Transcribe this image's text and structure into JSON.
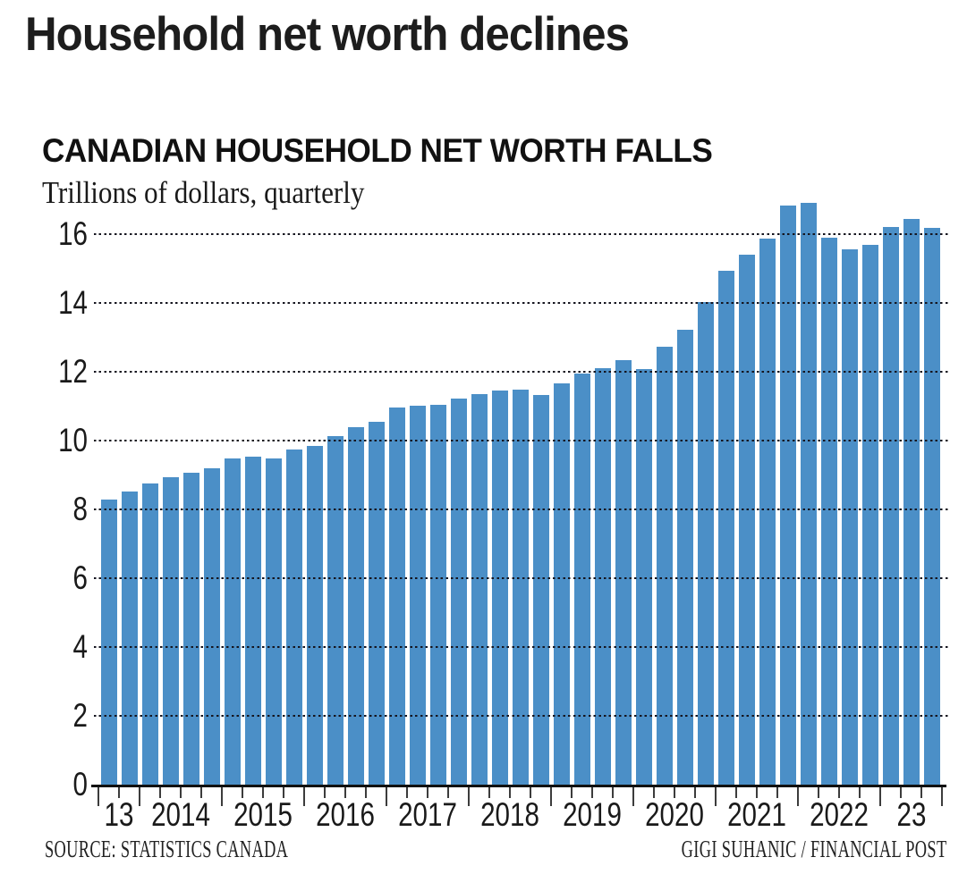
{
  "page": {
    "title": "Household net worth declines",
    "background_color": "#ffffff"
  },
  "chart_data": {
    "type": "bar",
    "title": "CANADIAN HOUSEHOLD NET WORTH FALLS",
    "subtitle": "Trillions of dollars, quarterly",
    "source": "SOURCE: STATISTICS CANADA",
    "credit": "GIGI SUHANIC / FINANCIAL POST",
    "unit": "trillions of dollars",
    "frequency": "quarterly",
    "bar_color": "#4b8fc7",
    "grid": "dotted-horizontal",
    "legend_position": "none",
    "ylim": [
      0,
      17
    ],
    "ytick_interval": 2,
    "ytick_labels": [
      "0",
      "2",
      "4",
      "6",
      "8",
      "10",
      "12",
      "14",
      "16"
    ],
    "year_groups": [
      {
        "label": "13",
        "quarters": 2
      },
      {
        "label": "2014",
        "quarters": 4
      },
      {
        "label": "2015",
        "quarters": 4
      },
      {
        "label": "2016",
        "quarters": 4
      },
      {
        "label": "2017",
        "quarters": 4
      },
      {
        "label": "2018",
        "quarters": 4
      },
      {
        "label": "2019",
        "quarters": 4
      },
      {
        "label": "2020",
        "quarters": 4
      },
      {
        "label": "2021",
        "quarters": 4
      },
      {
        "label": "2022",
        "quarters": 4
      },
      {
        "label": "23",
        "quarters": 3
      }
    ],
    "categories": [
      "2013 Q3",
      "2013 Q4",
      "2014 Q1",
      "2014 Q2",
      "2014 Q3",
      "2014 Q4",
      "2015 Q1",
      "2015 Q2",
      "2015 Q3",
      "2015 Q4",
      "2016 Q1",
      "2016 Q2",
      "2016 Q3",
      "2016 Q4",
      "2017 Q1",
      "2017 Q2",
      "2017 Q3",
      "2017 Q4",
      "2018 Q1",
      "2018 Q2",
      "2018 Q3",
      "2018 Q4",
      "2019 Q1",
      "2019 Q2",
      "2019 Q3",
      "2019 Q4",
      "2020 Q1",
      "2020 Q2",
      "2020 Q3",
      "2020 Q4",
      "2021 Q1",
      "2021 Q2",
      "2021 Q3",
      "2021 Q4",
      "2022 Q1",
      "2022 Q2",
      "2022 Q3",
      "2022 Q4",
      "2023 Q1",
      "2023 Q2",
      "2023 Q3"
    ],
    "values": [
      8.28,
      8.51,
      8.76,
      8.94,
      9.07,
      9.19,
      9.47,
      9.53,
      9.49,
      9.74,
      9.85,
      10.14,
      10.4,
      10.55,
      10.95,
      11.02,
      11.05,
      11.22,
      11.36,
      11.45,
      11.48,
      11.33,
      11.67,
      11.96,
      12.11,
      12.33,
      12.07,
      12.72,
      13.22,
      14.02,
      14.93,
      15.4,
      15.88,
      16.84,
      16.92,
      15.9,
      15.55,
      15.7,
      16.2,
      16.45,
      16.18
    ]
  }
}
